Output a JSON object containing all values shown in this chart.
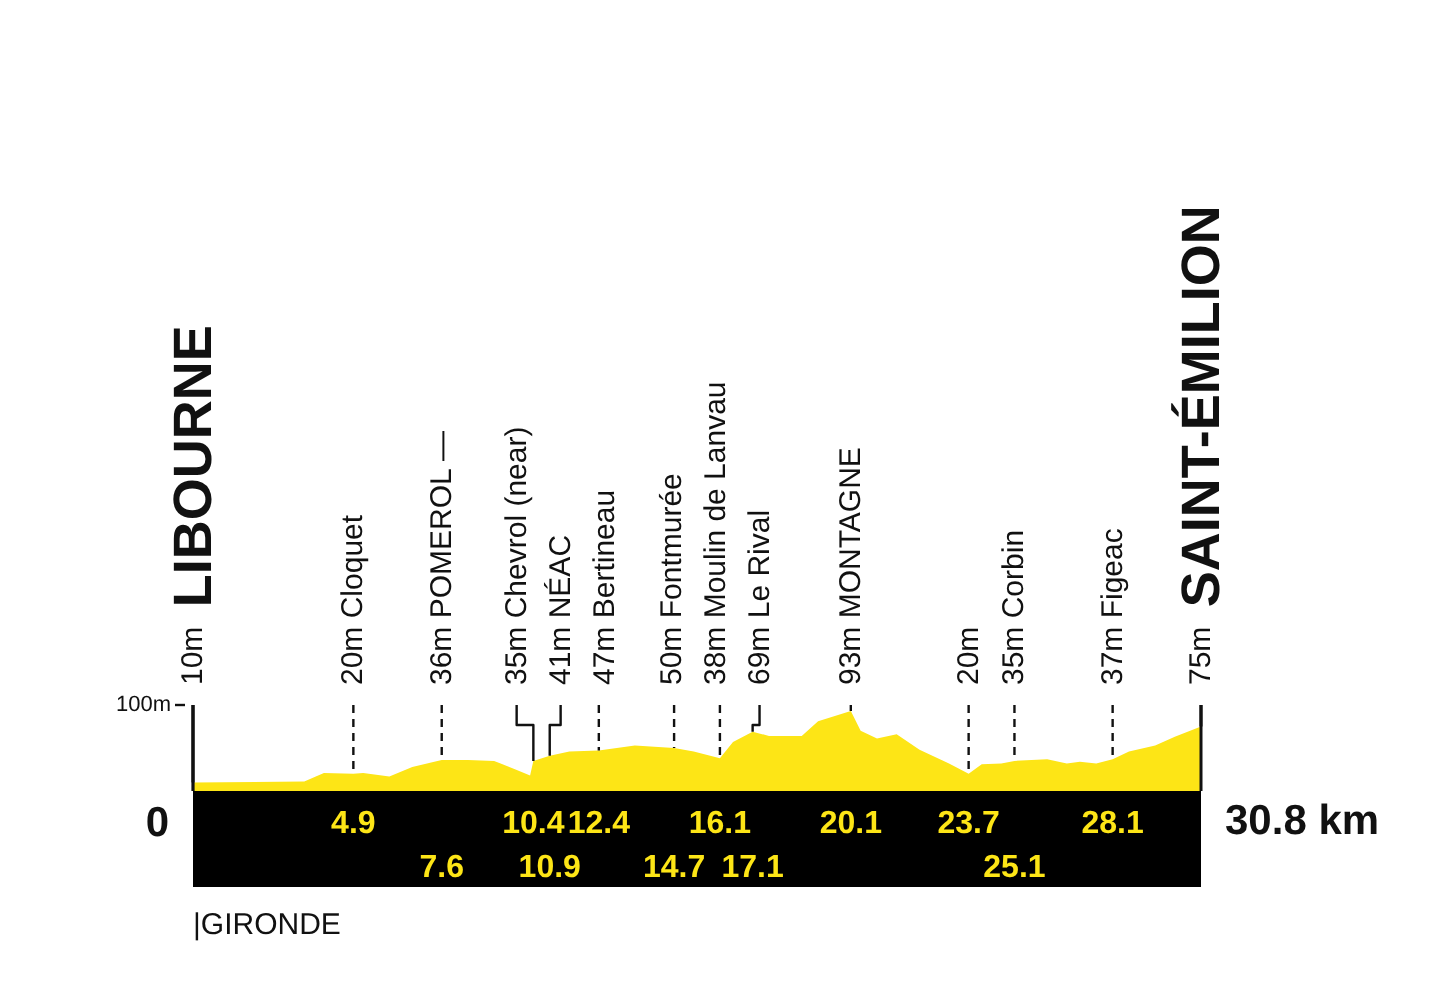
{
  "chart_data": {
    "type": "area",
    "x": [
      0,
      3.4,
      4.0,
      4.9,
      5.2,
      6.0,
      6.7,
      7.6,
      8.4,
      9.2,
      9.8,
      10.3,
      10.4,
      10.9,
      11.5,
      12.4,
      13.5,
      14.7,
      15.3,
      16.1,
      16.5,
      17.1,
      17.6,
      18.6,
      19.1,
      20.1,
      20.4,
      20.9,
      21.5,
      22.2,
      23.1,
      23.7,
      24.1,
      24.7,
      25.1,
      26.1,
      26.7,
      27.1,
      27.6,
      28.1,
      28.6,
      29.4,
      30.0,
      30.8
    ],
    "series": [
      {
        "color": "#fde516",
        "values": [
          10,
          11,
          21,
          20,
          21,
          17,
          28,
          36,
          36,
          35,
          26,
          18,
          35,
          41,
          46,
          47,
          53,
          50,
          46,
          38,
          57,
          69,
          64,
          64,
          81,
          93,
          70,
          61,
          66,
          48,
          32,
          20,
          31,
          32,
          35,
          37,
          32,
          34,
          32,
          37,
          46,
          53,
          63,
          75
        ]
      }
    ],
    "xlim": [
      0,
      30.8
    ],
    "ylim": [
      0,
      100
    ],
    "xticks": [
      4.9,
      10.4,
      12.4,
      16.1,
      20.1,
      23.7,
      28.1
    ],
    "x2lim": [
      0,
      30.8
    ],
    "x2ticks": [
      7.6,
      10.9,
      14.7,
      17.1,
      25.1
    ],
    "yticks": [
      {
        "value": 100,
        "label": "100m"
      }
    ],
    "ref_lines": [
      {
        "axis": "x",
        "value": 0,
        "label": "0"
      },
      {
        "axis": "x",
        "value": 30.8,
        "label": "30.8 km"
      }
    ],
    "annotations": [
      {
        "text": "10m LIBOURNE",
        "x": 0,
        "y": 10
      },
      {
        "text": "20m Cloquet",
        "x": 4.9,
        "y": 20
      },
      {
        "text": "36m POMEROL —",
        "x": 7.6,
        "y": 36
      },
      {
        "text": "35m Chevrol (near)",
        "x": 10.4,
        "y": 35
      },
      {
        "text": "41m NÉAC",
        "x": 10.9,
        "y": 41
      },
      {
        "text": "47m Bertineau",
        "x": 12.4,
        "y": 47
      },
      {
        "text": "50m Fontmurée",
        "x": 14.7,
        "y": 50
      },
      {
        "text": "38m Moulin de Lanvau",
        "x": 16.1,
        "y": 38
      },
      {
        "text": "69m Le Rival",
        "x": 17.1,
        "y": 69
      },
      {
        "text": "93m MONTAGNE",
        "x": 20.1,
        "y": 93
      },
      {
        "text": "20m",
        "x": 23.7,
        "y": 20
      },
      {
        "text": "35m Corbin",
        "x": 25.1,
        "y": 35
      },
      {
        "text": "37m Figeac",
        "x": 28.1,
        "y": 37
      },
      {
        "text": "75m SAINT-ÉMILION",
        "x": 30.8,
        "y": 75
      },
      "|GIRONDE"
    ]
  }
}
